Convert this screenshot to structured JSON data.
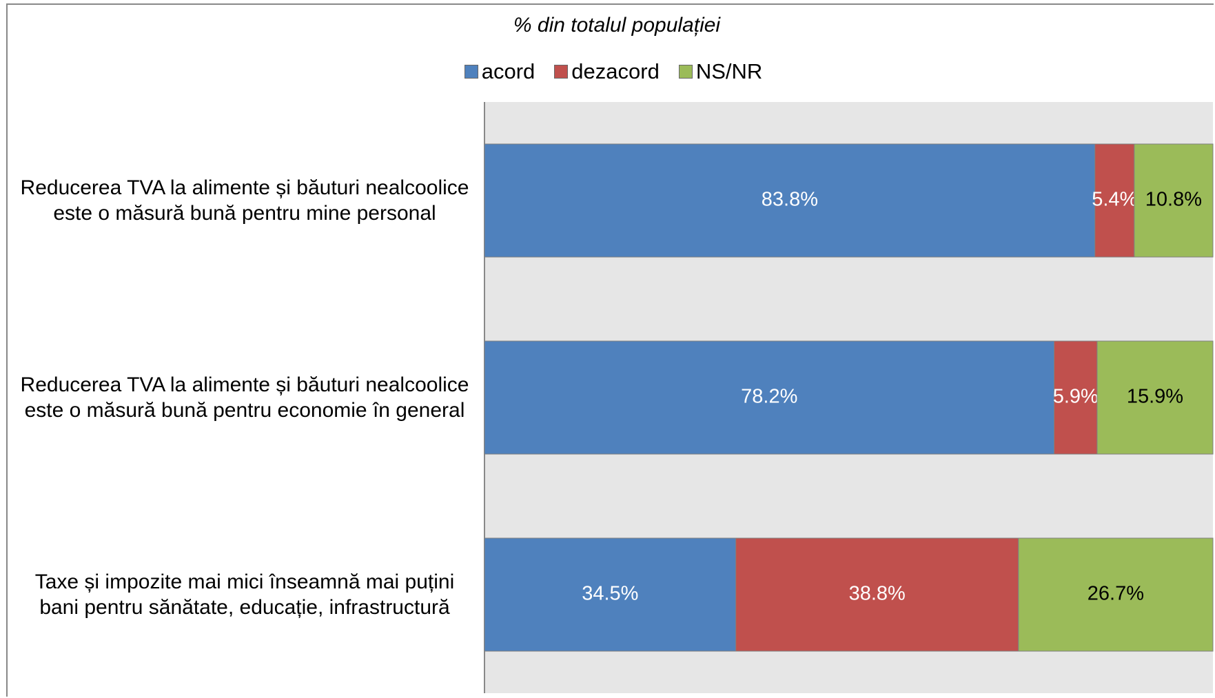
{
  "chart_data": {
    "type": "stacked_barh",
    "title": "% din totalul populației",
    "categories": [
      "Reducerea TVA la alimente și băuturi nealcoolice este o măsură bună pentru mine personal",
      "Reducerea TVA la alimente și băuturi nealcoolice este o măsură bună pentru economie în general",
      "Taxe și impozite mai mici înseamnă mai puțini bani pentru sănătate, educație, infrastructură"
    ],
    "series": [
      {
        "name": "acord",
        "color": "#4f81bd",
        "label_color": "#ffffff",
        "values": [
          83.8,
          78.2,
          34.5
        ],
        "value_labels": [
          "83.8%",
          "78.2%",
          "34.5%"
        ]
      },
      {
        "name": "dezacord",
        "color": "#c0504d",
        "label_color": "#ffffff",
        "values": [
          5.4,
          5.9,
          38.8
        ],
        "value_labels": [
          "5.4%",
          "5.9%",
          "38.8%"
        ]
      },
      {
        "name": "NS/NR",
        "color": "#9bbb59",
        "label_color": "#000000",
        "values": [
          10.8,
          15.9,
          26.7
        ],
        "value_labels": [
          "10.8%",
          "15.9%",
          "26.7%"
        ]
      }
    ],
    "xlim": [
      0,
      100
    ],
    "legend": "top"
  }
}
